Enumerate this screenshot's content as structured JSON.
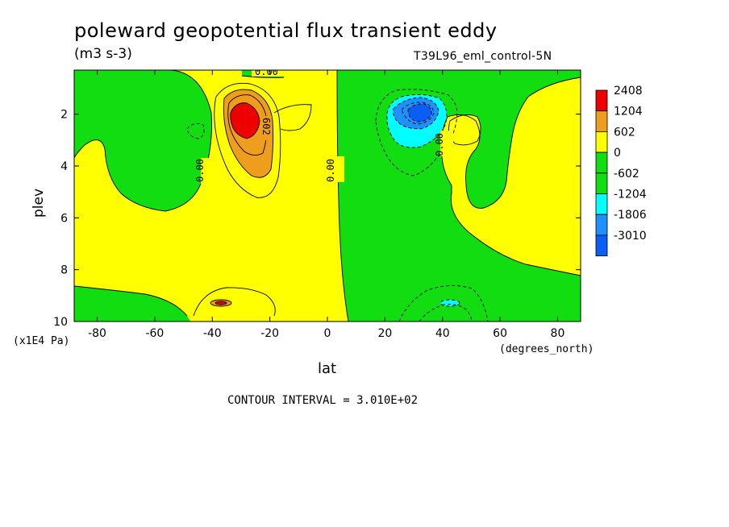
{
  "chart_data": {
    "type": "heatmap",
    "title": "poleward geopotential flux transient eddy",
    "units": "(m3 s-3)",
    "run_label": "T39L96_eml_control-5N",
    "xlabel": "lat",
    "ylabel": "plev",
    "x_units": "(degrees_north)",
    "y_units": "(x1E4 Pa)",
    "x_ticks": [
      "-80",
      "-60",
      "-40",
      "-20",
      "0",
      "20",
      "40",
      "60",
      "80"
    ],
    "y_ticks": [
      "2",
      "4",
      "6",
      "8",
      "10"
    ],
    "xlim": [
      -88,
      88
    ],
    "ylim": [
      10,
      0.3
    ],
    "contour_interval": "CONTOUR INTERVAL = 3.010E+02",
    "legend": {
      "placement": "right",
      "labels": [
        "2408",
        "1204",
        "602",
        "0",
        "-602",
        "-1204",
        "-1806",
        "-3010"
      ],
      "colors": [
        "#ee0000",
        "#ee9e1c",
        "#ffff00",
        "#11dd11",
        "#11dd11",
        "#00ffff",
        "#1e90ff",
        "#0a5ef5"
      ]
    },
    "contour_labels": [
      "0.00",
      "602",
      "0.00",
      "0.00",
      "0.00"
    ],
    "features": [
      {
        "sign": "positive",
        "center_lat": -30,
        "center_plev": 2.0,
        "peak": 2408
      },
      {
        "sign": "negative",
        "center_lat": 32,
        "center_plev": 1.8,
        "peak": -3010
      },
      {
        "sign": "positive",
        "center_lat": -37,
        "center_plev": 9.2,
        "peak": 602
      },
      {
        "sign": "negative",
        "center_lat": 42,
        "center_plev": 9.2,
        "peak": -602
      }
    ]
  }
}
